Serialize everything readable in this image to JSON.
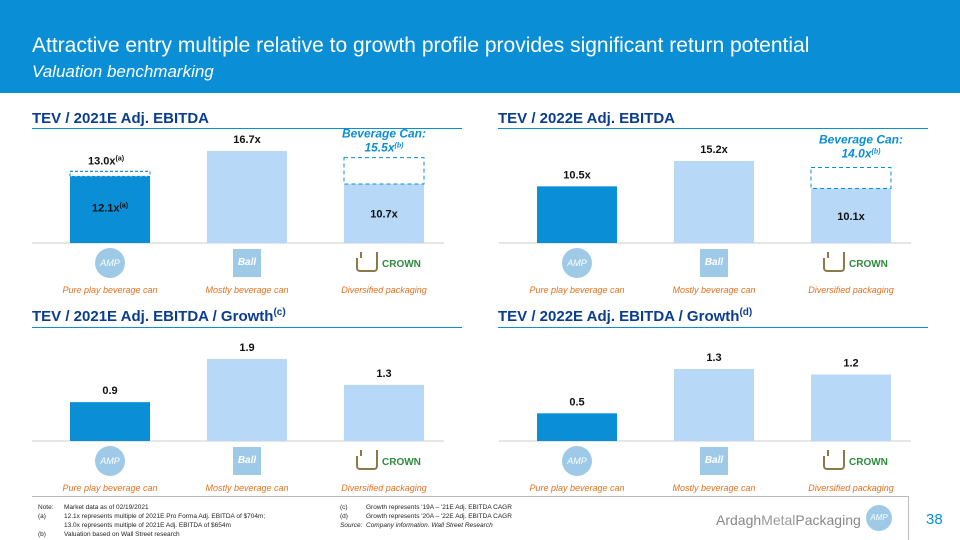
{
  "header": {
    "title": "Attractive entry multiple relative to growth profile provides significant return potential",
    "subtitle": "Valuation benchmarking"
  },
  "colors": {
    "dark_bar": "#0a8fd6",
    "light_bar": "#b8d8f8",
    "accent": "#0a8fd6",
    "category": "#e4701e"
  },
  "categories": [
    "Pure play beverage can",
    "Mostly beverage can",
    "Diversified packaging"
  ],
  "logos": {
    "amp": "AMP",
    "ball": "Ball",
    "crown": "CROWN"
  },
  "panels": [
    {
      "title": "TEV / 2021E Adj. EBITDA",
      "title_sup": ""
    },
    {
      "title": "TEV / 2022E Adj. EBITDA",
      "title_sup": ""
    },
    {
      "title": "TEV / 2021E Adj. EBITDA / Growth",
      "title_sup": "(c)"
    },
    {
      "title": "TEV / 2022E Adj. EBITDA / Growth",
      "title_sup": "(d)"
    }
  ],
  "chart_data": [
    {
      "type": "bar",
      "title": "TEV / 2021E Adj. EBITDA",
      "categories": [
        "Pure play beverage can",
        "Mostly beverage can",
        "Diversified packaging"
      ],
      "values": [
        12.1,
        16.7,
        10.7
      ],
      "value_labels": [
        "12.1x",
        "16.7x",
        "10.7x"
      ],
      "value_label_sups": [
        "(a)",
        "",
        ""
      ],
      "extra_marker": {
        "category_index": 0,
        "value": 13.0,
        "label": "13.0x",
        "label_sup": "(a)"
      },
      "dashed_target": {
        "category_index": 2,
        "value": 15.5,
        "label": "Beverage Can:",
        "label2": "15.5x",
        "label2_sup": "(b)"
      },
      "ylim": [
        0,
        16.7
      ]
    },
    {
      "type": "bar",
      "title": "TEV / 2022E Adj. EBITDA",
      "categories": [
        "Pure play beverage can",
        "Mostly beverage can",
        "Diversified packaging"
      ],
      "values": [
        10.5,
        15.2,
        10.1
      ],
      "value_labels": [
        "10.5x",
        "15.2x",
        "10.1x"
      ],
      "value_label_sups": [
        "",
        "",
        ""
      ],
      "dashed_target": {
        "category_index": 2,
        "value": 14.0,
        "label": "Beverage Can:",
        "label2": "14.0x",
        "label2_sup": "(b)"
      },
      "ylim": [
        0,
        15.2
      ]
    },
    {
      "type": "bar",
      "title": "TEV / 2021E Adj. EBITDA / Growth",
      "categories": [
        "Pure play beverage can",
        "Mostly beverage can",
        "Diversified packaging"
      ],
      "values": [
        0.9,
        1.9,
        1.3
      ],
      "value_labels": [
        "0.9",
        "1.9",
        "1.3"
      ],
      "ylim": [
        0,
        1.9
      ]
    },
    {
      "type": "bar",
      "title": "TEV / 2022E Adj. EBITDA / Growth",
      "categories": [
        "Pure play beverage can",
        "Mostly beverage can",
        "Diversified packaging"
      ],
      "values": [
        0.5,
        1.3,
        1.2
      ],
      "value_labels": [
        "0.5",
        "1.3",
        "1.2"
      ],
      "ylim": [
        0,
        1.3
      ]
    }
  ],
  "notes": {
    "note_key": "Note:",
    "note_text": "Market data as of 02/19/2021",
    "a_key": "(a)",
    "a_text1": "12.1x represents multiple of 2021E Pro Forma Adj. EBITDA of $704m;",
    "a_text2": "13.0x represents multiple of 2021E Adj. EBITDA of $654m",
    "b_key": "(b)",
    "b_text": "Valuation based on Wall Street research",
    "c_key": "(c)",
    "c_text": "Growth represents '19A – '21E Adj. EBITDA CAGR",
    "d_key": "(d)",
    "d_text": "Growth represents '20A – '22E Adj. EBITDA CAGR",
    "source_key": "Source:",
    "source_text": "Company information. Wall Street Research"
  },
  "footer": {
    "brand_a": "Ardagh",
    "brand_b": "Metal",
    "brand_c": "Packaging",
    "page_number": "38"
  }
}
